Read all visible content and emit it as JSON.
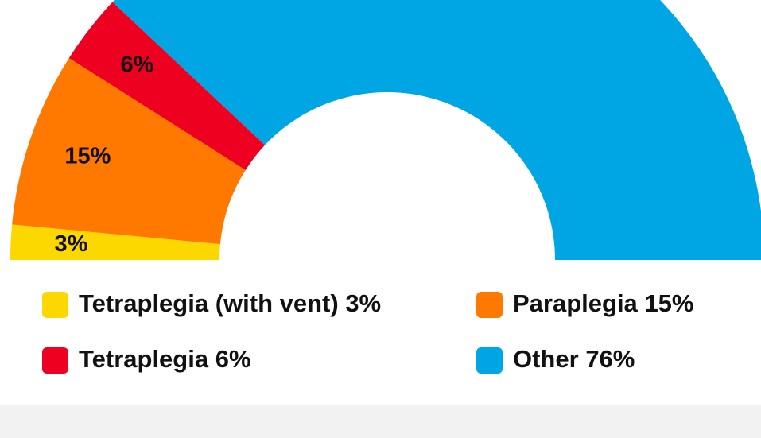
{
  "chart_data": {
    "type": "pie",
    "half": true,
    "categories": [
      "Tetraplegia (with vent)",
      "Paraplegia",
      "Tetraplegia",
      "Other"
    ],
    "values": [
      3,
      15,
      6,
      76
    ],
    "value_labels": [
      "3%",
      "15%",
      "6%",
      "76%"
    ],
    "colors": [
      "#fdd800",
      "#ff7900",
      "#ee0020",
      "#00a6e4"
    ]
  }
}
